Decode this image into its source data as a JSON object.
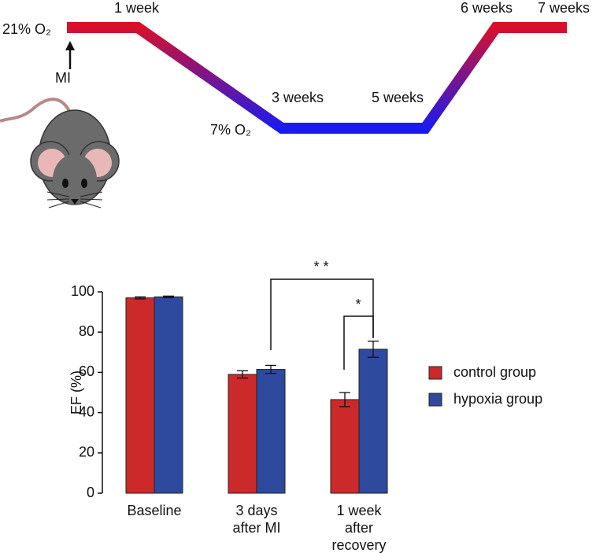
{
  "diagram": {
    "oxygen_high": "21% O₂",
    "oxygen_low": "7% O₂",
    "event": "MI",
    "time_points": [
      "1 week",
      "3 weeks",
      "5 weeks",
      "6 weeks",
      "7 weeks"
    ]
  },
  "chart_data": {
    "type": "bar",
    "y_label": "EF (%)",
    "categories": [
      "Baseline",
      "3 days\nafter MI",
      "1 week\nafter\nrecovery"
    ],
    "series": [
      {
        "name": "control group",
        "color": "#cc2a2a",
        "values": [
          97,
          59,
          46.5
        ],
        "errors": [
          0.5,
          1.8,
          3.5
        ]
      },
      {
        "name": "hypoxia group",
        "color": "#2e4a9e",
        "values": [
          97.5,
          61.5,
          71.5
        ],
        "errors": [
          0.4,
          2,
          4
        ]
      }
    ],
    "ylim": [
      0,
      100
    ],
    "yticks": [
      0,
      20,
      40,
      60,
      80,
      100
    ],
    "annotations": [
      "* *",
      "*"
    ]
  }
}
